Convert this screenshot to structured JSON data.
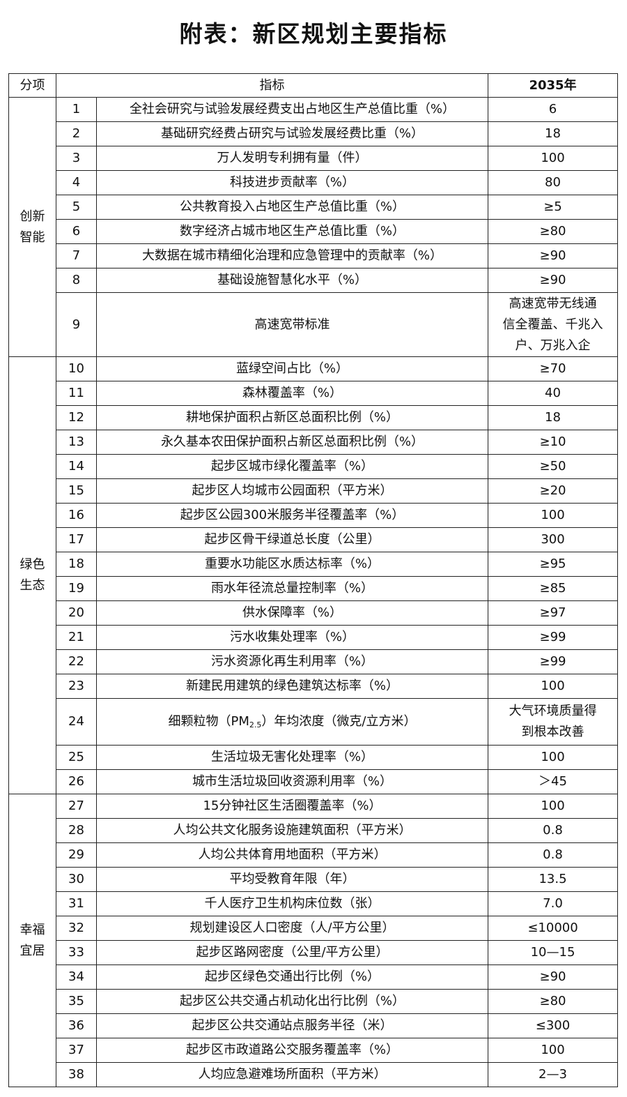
{
  "title": "附表：新区规划主要指标",
  "headers": {
    "category": "分项",
    "indicator": "指标",
    "year": "2035年"
  },
  "groups": [
    {
      "name": "创新\n智能",
      "rows": [
        {
          "no": "1",
          "indicator": "全社会研究与试验发展经费支出占地区生产总值比重（%）",
          "value": "6"
        },
        {
          "no": "2",
          "indicator": "基础研究经费占研究与试验发展经费比重（%）",
          "value": "18"
        },
        {
          "no": "3",
          "indicator": "万人发明专利拥有量（件）",
          "value": "100"
        },
        {
          "no": "4",
          "indicator": "科技进步贡献率（%）",
          "value": "80"
        },
        {
          "no": "5",
          "indicator": "公共教育投入占地区生产总值比重（%）",
          "value": "≥5"
        },
        {
          "no": "6",
          "indicator": "数字经济占城市地区生产总值比重（%）",
          "value": "≥80"
        },
        {
          "no": "7",
          "indicator": "大数据在城市精细化治理和应急管理中的贡献率（%）",
          "value": "≥90"
        },
        {
          "no": "8",
          "indicator": "基础设施智慧化水平（%）",
          "value": "≥90"
        },
        {
          "no": "9",
          "indicator": "高速宽带标准",
          "value": "高速宽带无线通\n信全覆盖、千兆入\n户、万兆入企"
        }
      ]
    },
    {
      "name": "绿色\n生态",
      "rows": [
        {
          "no": "10",
          "indicator": "蓝绿空间占比（%）",
          "value": "≥70"
        },
        {
          "no": "11",
          "indicator": "森林覆盖率（%）",
          "value": "40"
        },
        {
          "no": "12",
          "indicator": "耕地保护面积占新区总面积比例（%）",
          "value": "18"
        },
        {
          "no": "13",
          "indicator": "永久基本农田保护面积占新区总面积比例（%）",
          "value": "≥10"
        },
        {
          "no": "14",
          "indicator": "起步区城市绿化覆盖率（%）",
          "value": "≥50"
        },
        {
          "no": "15",
          "indicator": "起步区人均城市公园面积（平方米）",
          "value": "≥20"
        },
        {
          "no": "16",
          "indicator": "起步区公园300米服务半径覆盖率（%）",
          "value": "100"
        },
        {
          "no": "17",
          "indicator": "起步区骨干绿道总长度（公里）",
          "value": "300"
        },
        {
          "no": "18",
          "indicator": "重要水功能区水质达标率（%）",
          "value": "≥95"
        },
        {
          "no": "19",
          "indicator": "雨水年径流总量控制率（%）",
          "value": "≥85"
        },
        {
          "no": "20",
          "indicator": "供水保障率（%）",
          "value": "≥97"
        },
        {
          "no": "21",
          "indicator": "污水收集处理率（%）",
          "value": "≥99"
        },
        {
          "no": "22",
          "indicator": "污水资源化再生利用率（%）",
          "value": "≥99"
        },
        {
          "no": "23",
          "indicator": "新建民用建筑的绿色建筑达标率（%）",
          "value": "100"
        },
        {
          "no": "24",
          "indicator": {
            "pre": "细颗粒物（PM",
            "sub": "2.5",
            "post": "）年均浓度（微克/立方米）"
          },
          "value": "大气环境质量得\n到根本改善"
        },
        {
          "no": "25",
          "indicator": "生活垃圾无害化处理率（%）",
          "value": "100"
        },
        {
          "no": "26",
          "indicator": "城市生活垃圾回收资源利用率（%）",
          "value": "＞45"
        }
      ]
    },
    {
      "name": "幸福\n宜居",
      "rows": [
        {
          "no": "27",
          "indicator": "15分钟社区生活圈覆盖率（%）",
          "value": "100"
        },
        {
          "no": "28",
          "indicator": "人均公共文化服务设施建筑面积（平方米）",
          "value": "0.8"
        },
        {
          "no": "29",
          "indicator": "人均公共体育用地面积（平方米）",
          "value": "0.8"
        },
        {
          "no": "30",
          "indicator": "平均受教育年限（年）",
          "value": "13.5"
        },
        {
          "no": "31",
          "indicator": "千人医疗卫生机构床位数（张）",
          "value": "7.0"
        },
        {
          "no": "32",
          "indicator": "规划建设区人口密度（人/平方公里）",
          "value": "≤10000"
        },
        {
          "no": "33",
          "indicator": "起步区路网密度（公里/平方公里）",
          "value": "10—15"
        },
        {
          "no": "34",
          "indicator": "起步区绿色交通出行比例（%）",
          "value": "≥90"
        },
        {
          "no": "35",
          "indicator": "起步区公共交通占机动化出行比例（%）",
          "value": "≥80"
        },
        {
          "no": "36",
          "indicator": "起步区公共交通站点服务半径（米）",
          "value": "≤300"
        },
        {
          "no": "37",
          "indicator": "起步区市政道路公交服务覆盖率（%）",
          "value": "100"
        },
        {
          "no": "38",
          "indicator": "人均应急避难场所面积（平方米）",
          "value": "2—3"
        }
      ]
    }
  ]
}
